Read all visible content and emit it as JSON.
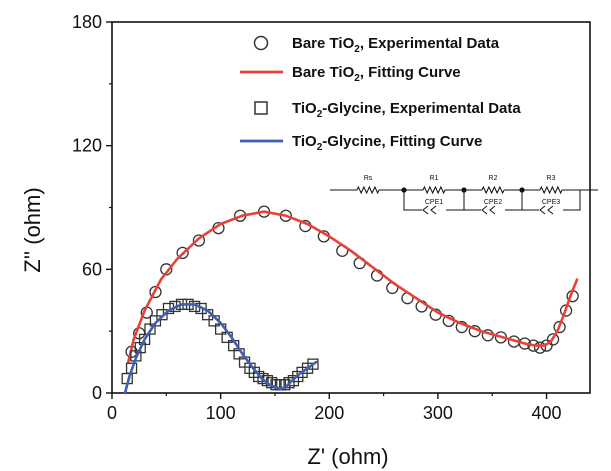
{
  "chart_data": {
    "type": "scatter",
    "xlabel": "Z' (ohm)",
    "ylabel": "Z'' (ohm)",
    "xlim": [
      0,
      440
    ],
    "ylim": [
      0,
      180
    ],
    "xticks": [
      0,
      100,
      200,
      300,
      400
    ],
    "yticks": [
      0,
      60,
      120,
      180
    ],
    "legend_position": "top-right",
    "series": [
      {
        "name": "Bare TiO2, Experimental Data",
        "legend_label": {
          "pre": "Bare TiO",
          "sub": "2",
          "post": ", Experimental Data"
        },
        "marker": "circle",
        "color": "#333333",
        "x": [
          18,
          25,
          32,
          40,
          50,
          65,
          80,
          98,
          118,
          140,
          160,
          178,
          195,
          212,
          228,
          244,
          258,
          272,
          285,
          298,
          310,
          322,
          334,
          346,
          358,
          370,
          380,
          388,
          394,
          400,
          406,
          412,
          418,
          424
        ],
        "y": [
          20,
          29,
          39,
          49,
          60,
          68,
          74,
          80,
          86,
          88,
          86,
          81,
          76,
          69,
          63,
          57,
          51,
          46,
          42,
          38,
          35,
          32,
          30,
          28,
          27,
          25,
          24,
          23,
          22,
          23,
          26,
          32,
          40,
          47
        ]
      },
      {
        "name": "Bare TiO2, Fitting Curve",
        "legend_label": {
          "pre": "Bare TiO",
          "sub": "2",
          "post": ", Fitting Curve"
        },
        "marker": "line",
        "color": "#e8413a",
        "x": [
          15,
          20,
          30,
          45,
          60,
          80,
          100,
          120,
          140,
          160,
          180,
          200,
          220,
          240,
          260,
          280,
          300,
          320,
          340,
          360,
          380,
          390,
          398,
          404,
          410,
          416,
          422,
          428
        ],
        "y": [
          15,
          26,
          40,
          55,
          65,
          75,
          82,
          86,
          88,
          86,
          82,
          76,
          69,
          61,
          53,
          46,
          39,
          34,
          30,
          27,
          24,
          23,
          23,
          25,
          30,
          38,
          47,
          55
        ]
      },
      {
        "name": "TiO2-Glycine, Experimental Data",
        "legend_label": {
          "pre": "TiO",
          "sub": "2",
          "post": "-Glycine, Experimental Data"
        },
        "marker": "square",
        "color": "#333333",
        "x": [
          14,
          18,
          22,
          26,
          30,
          35,
          40,
          46,
          52,
          58,
          64,
          70,
          76,
          82,
          88,
          94,
          100,
          106,
          112,
          117,
          122,
          127,
          131,
          135,
          139,
          143,
          147,
          151,
          155,
          159,
          163,
          167,
          171,
          175,
          180,
          185
        ],
        "y": [
          7,
          12,
          18,
          22,
          26,
          31,
          35,
          38,
          41,
          42,
          43,
          43,
          42,
          41,
          38,
          35,
          31,
          27,
          23,
          19,
          15,
          12,
          10,
          8,
          7,
          6,
          5,
          4,
          4,
          4,
          5,
          6,
          8,
          10,
          12,
          14
        ]
      },
      {
        "name": "TiO2-Glycine, Fitting Curve",
        "legend_label": {
          "pre": "TiO",
          "sub": "2",
          "post": "-Glycine, Fitting Curve"
        },
        "marker": "line",
        "color": "#3f5fb0",
        "x": [
          12,
          16,
          22,
          30,
          40,
          52,
          64,
          76,
          88,
          100,
          110,
          120,
          130,
          138,
          145,
          150,
          155,
          160,
          166,
          172,
          180,
          188
        ],
        "y": [
          0,
          8,
          17,
          26,
          34,
          40,
          43,
          43,
          40,
          34,
          27,
          19,
          12,
          7,
          4,
          3,
          2,
          3,
          6,
          9,
          12,
          15
        ]
      }
    ]
  },
  "inset_circuit": {
    "elements": [
      "Rs",
      "R1",
      "CPE1",
      "R2",
      "CPE2",
      "R3",
      "CPE3"
    ]
  }
}
